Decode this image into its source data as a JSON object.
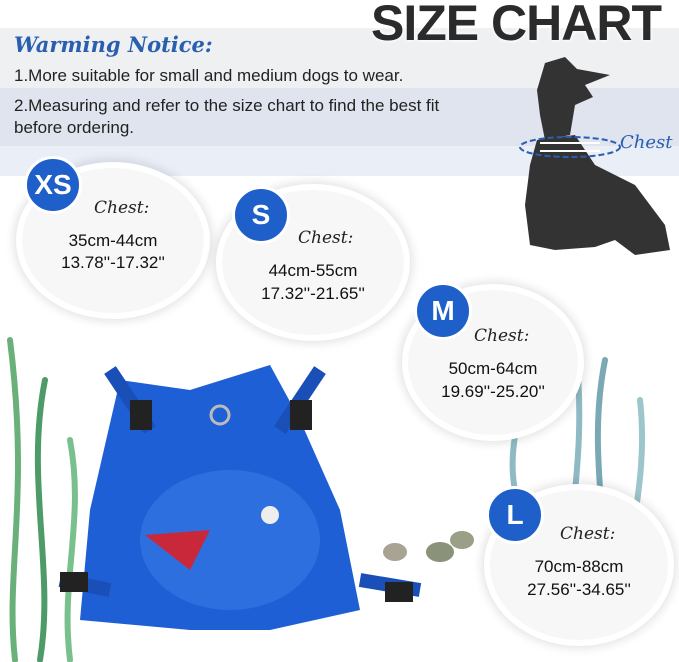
{
  "title": "SIZE CHART",
  "notice": {
    "heading": "Warming Notice:",
    "lines": [
      "1.More suitable for small and medium dogs to wear.",
      "2.Measuring and refer to the size chart to find the best fit before ordering."
    ]
  },
  "dog_chest_label": "Chest",
  "sizes": [
    {
      "size": "XS",
      "label": "Chest:",
      "cm": "35cm-44cm",
      "inch": "13.78''-17.32''"
    },
    {
      "size": "S",
      "label": "Chest:",
      "cm": "44cm-55cm",
      "inch": "17.32''-21.65''"
    },
    {
      "size": "M",
      "label": "Chest:",
      "cm": "50cm-64cm",
      "inch": "19.69''-25.20''"
    },
    {
      "size": "L",
      "label": "Chest:",
      "cm": "70cm-88cm",
      "inch": "27.56''-34.65''"
    }
  ],
  "colors": {
    "badge": "#1e5fc9",
    "harness": "#1f5fd6",
    "notice": "#2a5fb0"
  }
}
